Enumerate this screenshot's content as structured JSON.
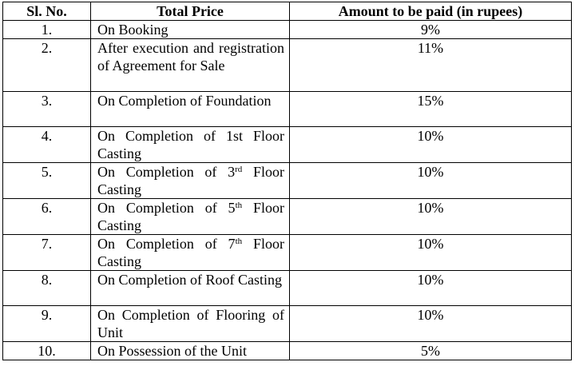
{
  "table": {
    "header": [
      "Sl. No.",
      "Total Price",
      "Amount to be paid (in rupees)"
    ],
    "rows": [
      {
        "number": "1.",
        "description": "On Booking",
        "amount": "9%"
      },
      {
        "number": "2.",
        "description": "After execution and registration of Agreement for Sale",
        "amount": "11%"
      },
      {
        "number": "3.",
        "description": "On Completion of Foundation",
        "amount": "15%"
      },
      {
        "number": "4.",
        "description": "On Completion of 1st Floor Casting",
        "amount": "10%"
      },
      {
        "number": "5.",
        "description": {
          "text": "On Completion of 3",
          "superscript": "rd",
          "continuation": "Floor Casting"
        },
        "amount": "10%"
      },
      {
        "number": "6.",
        "description": {
          "text": "On Completion of 5",
          "superscript": "th",
          "continuation": "Floor Casting"
        },
        "amount": "10%"
      },
      {
        "number": "7.",
        "description": {
          "text": "On Completion of 7",
          "superscript": "th",
          "continuation": "Floor Casting"
        },
        "amount": "10%"
      },
      {
        "number": "8.",
        "description": "On Completion of Roof Casting",
        "amount": "10%"
      },
      {
        "number": "9.",
        "description": "On Completion of Flooring of Unit",
        "amount": "10%"
      },
      {
        "number": "10.",
        "description": "On Possession of the Unit",
        "amount": "5%"
      }
    ]
  }
}
